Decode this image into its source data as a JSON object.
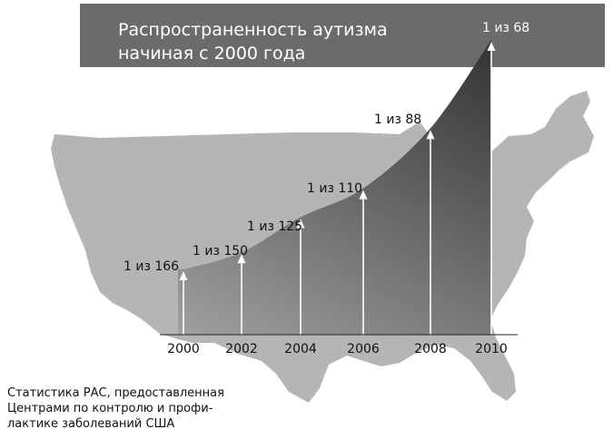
{
  "chart_data": {
    "type": "area",
    "title_lines": [
      "Распространенность аутизма",
      "начиная с 2000 года"
    ],
    "x": [
      2000,
      2002,
      2004,
      2006,
      2008,
      2010
    ],
    "tick_labels": [
      "2000",
      "2002",
      "2004",
      "2006",
      "2008",
      "2010"
    ],
    "values_one_in": [
      166,
      150,
      125,
      110,
      88,
      68
    ],
    "data_labels": [
      "1 из 166",
      "1 из 150",
      "1 из 125",
      "1 из 110",
      "1 из 88",
      "1 из 68"
    ],
    "xlabel": "",
    "ylabel": "",
    "grid": false,
    "legend": "none"
  },
  "source_note_lines": [
    "Статистика РАС, предоставленная",
    "Центрами по контролю и профи-",
    "лактике заболеваний США"
  ],
  "colors": {
    "title_bar": "#6b6b6b",
    "map": "#b5b5b5",
    "area_top": "#3c3c3c",
    "area_bottom": "#8a8a8a",
    "arrow": "#ffffff",
    "axis": "#222222"
  }
}
